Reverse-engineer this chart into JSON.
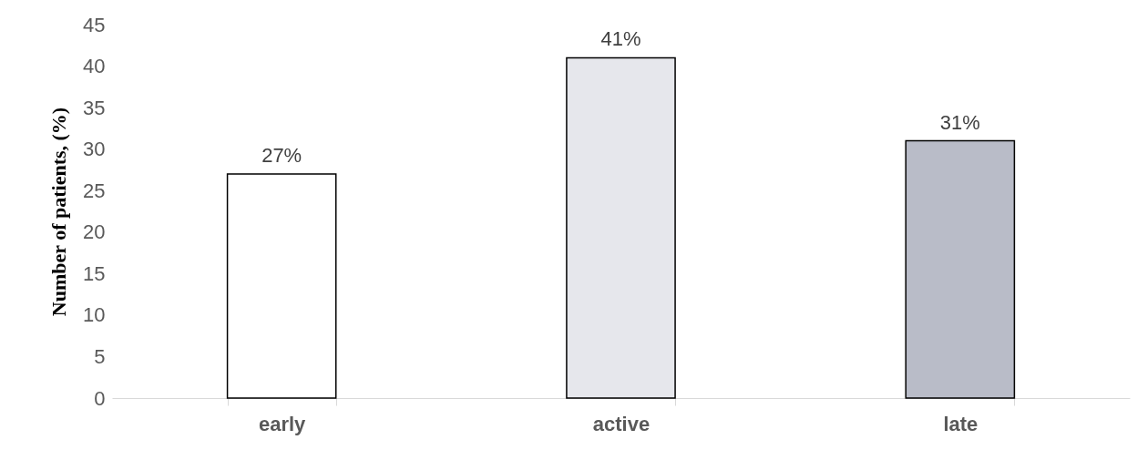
{
  "chart_data": {
    "type": "bar",
    "ylabel": "Number of patients, (%)",
    "categories": [
      "early",
      "active",
      "late"
    ],
    "values": [
      27,
      41,
      31
    ],
    "colors": [
      "#ffffff",
      "#e6e7ec",
      "#b9bcc8"
    ],
    "value_labels": [
      "27%",
      "41%",
      "31%"
    ],
    "ylim": [
      0,
      45
    ],
    "yticks": [
      0,
      5,
      10,
      15,
      20,
      25,
      30,
      35,
      40,
      45
    ],
    "grid": false
  }
}
